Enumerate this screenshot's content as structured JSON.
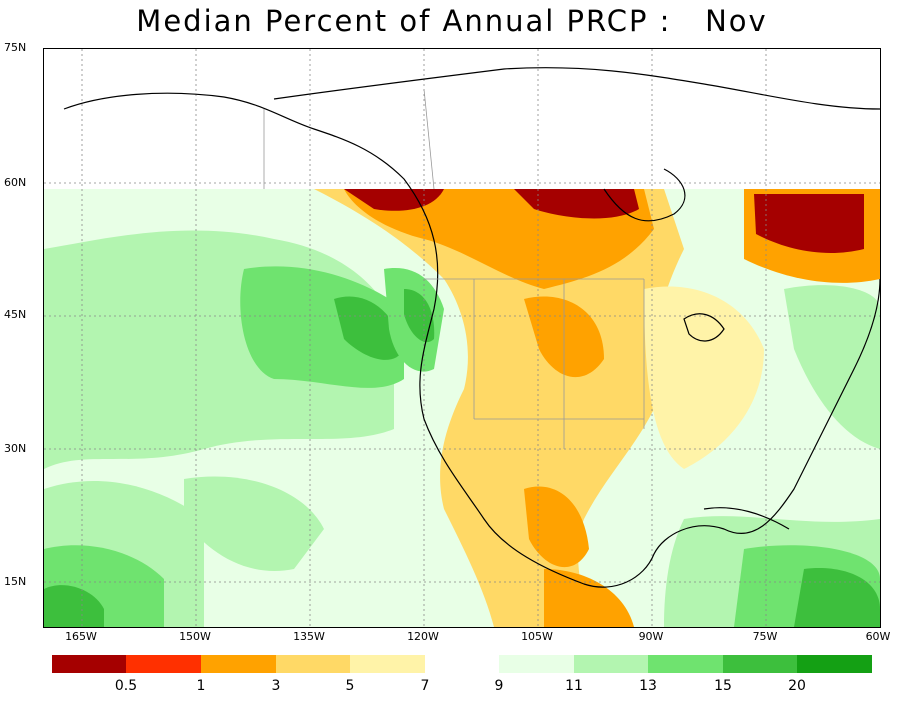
{
  "title": "Median Percent of Annual PRCP :   Nov",
  "lat_labels": [
    "75N",
    "60N",
    "45N",
    "30N",
    "15N"
  ],
  "lon_labels": [
    "165W",
    "150W",
    "135W",
    "120W",
    "105W",
    "90W",
    "75W",
    "60W"
  ],
  "colorbar": {
    "low_colors": [
      "#a50000",
      "#ff3000",
      "#ffa200",
      "#ffd966",
      "#fff3a8"
    ],
    "high_colors": [
      "#e8ffe6",
      "#b3f5b0",
      "#6fe36f",
      "#3dbf3d",
      "#14a014"
    ],
    "low_labels": [
      "0.5",
      "1",
      "3",
      "5",
      "7"
    ],
    "high_labels": [
      "9",
      "11",
      "13",
      "15",
      "20"
    ]
  }
}
